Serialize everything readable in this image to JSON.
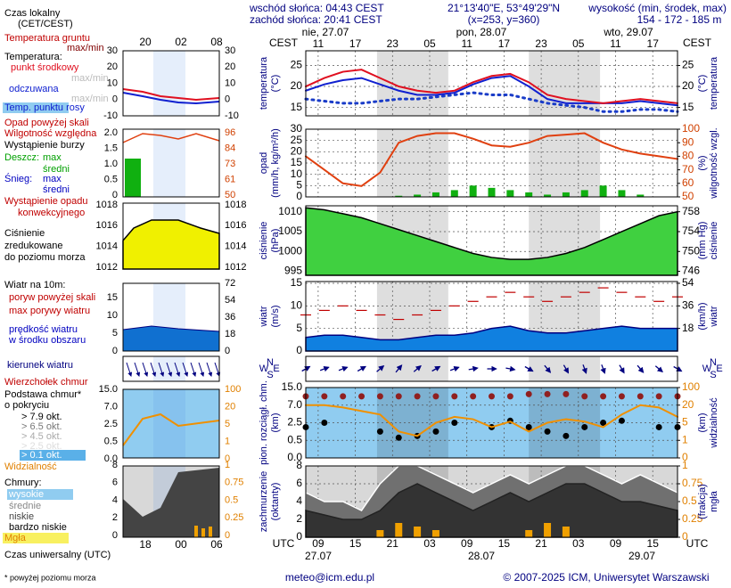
{
  "header": {
    "sunrise": "wschód słońca: 04:43 CEST",
    "sunset": "zachód słońca: 20:41 CEST",
    "coords": "21°13'40\"E, 53°49'29\"N",
    "grid": "(x=253, y=360)",
    "elevation_label": "wysokość (min, środek, max)",
    "elevation": "154 - 172 - 185 m"
  },
  "time_axis": {
    "top_label": "CEST",
    "top_hours": [
      "11",
      "17",
      "23",
      "05",
      "11",
      "17",
      "23",
      "05",
      "11",
      "17"
    ],
    "top_dates": [
      "nie, 27.07",
      "pon, 28.07",
      "wto, 29.07"
    ],
    "bottom_label": "UTC",
    "bottom_hours": [
      "09",
      "15",
      "21",
      "03",
      "09",
      "15",
      "21",
      "03",
      "09",
      "15"
    ],
    "bottom_dates": [
      "27.07",
      "28.07",
      "29.07"
    ]
  },
  "legend": {
    "time_local": "Czas lokalny",
    "time_local_sub": "(CET/CEST)",
    "soil_temp": "Temperatura gruntu",
    "soil_maxmin": "max/min",
    "temperature": "Temperatura:",
    "mid": "punkt środkowy",
    "mid_maxmin": "max/min",
    "perceived": "odczuwana",
    "perceived_maxmin": "max/min",
    "dew": "Temp. punktu rosy",
    "precip_over": "Opad powyżej skali",
    "humidity": "Wilgotność względna",
    "storm": "Wystąpienie burzy",
    "rain": "Deszcz:",
    "rain_max": "max",
    "rain_mean": "średni",
    "snow": "Śnieg:",
    "snow_max": "max",
    "snow_mean": "średni",
    "conv1": "Wystąpienie opadu",
    "conv2": "konwekcyjnego",
    "pressure1": "Ciśnienie",
    "pressure2": "zredukowane",
    "pressure3": "do poziomu morza",
    "wind": "Wiatr na 10m:",
    "gust_over": "poryw powyżej skali",
    "gust": "max porywy wiatru",
    "wind_mean1": "prędkość wiatru",
    "wind_mean2": "w środku obszaru",
    "wind_dir": "kierunek wiatru",
    "cloud_top": "Wierzchołek chmur",
    "cloud_base1": "Podstawa chmur*",
    "cloud_base2": "o pokryciu",
    "okt79": "> 7.9 okt.",
    "okt65": "> 6.5 okt.",
    "okt45": "> 4.5 okt.",
    "okt25": "> 2.5 okt.",
    "okt01": "> 0.1 okt.",
    "visibility": "Widzialność",
    "clouds": "Chmury:",
    "high": "wysokie",
    "mid_c": "średnie",
    "low": "niskie",
    "very_low": "bardzo niskie",
    "fog": "Mgła",
    "utc": "Czas uniwersalny (UTC)"
  },
  "legend_ticks": {
    "top": [
      "20",
      "02",
      "08"
    ],
    "bottom": [
      "18",
      "00",
      "06"
    ],
    "temp": [
      30,
      20,
      10,
      0,
      -10
    ],
    "precip": [
      "2.0",
      "1.5",
      "1.0",
      "0.5",
      0
    ],
    "hum": [
      96,
      84,
      73,
      61,
      50
    ],
    "press": [
      1018,
      1016,
      1014,
      1012
    ],
    "wind": [
      15,
      10,
      5,
      0
    ],
    "wind2": [
      72,
      54,
      36,
      18,
      0
    ],
    "cloud": [
      "15.0",
      "7.0",
      "2.5",
      "0.5",
      "0.0"
    ],
    "vis": [
      100,
      20,
      5,
      1,
      0
    ],
    "cl": [
      8,
      6,
      4,
      2,
      0
    ],
    "fog": [
      1,
      0.75,
      0.5,
      0.25,
      0
    ]
  },
  "footer": {
    "email": "meteo@icm.edu.pl",
    "copyright": "© 2007-2025 ICM, Uniwersytet Warszawski",
    "note": "* powyżej poziomu morza"
  },
  "chart_data": [
    {
      "type": "line",
      "ylabel": [
        "temperatura",
        "(°C)"
      ],
      "y2label": [
        "(°C)",
        "temperatura"
      ],
      "ylim": [
        13,
        28.5
      ],
      "yticks": [
        15,
        20,
        25
      ],
      "y2lim": [
        13,
        28.5
      ],
      "y2ticks": [
        15,
        20,
        25
      ],
      "grid": true,
      "background": "#ffffff",
      "series": [
        {
          "kind": "line",
          "color": "#1a3cc8",
          "style": "dotted",
          "values": [
            17,
            16.5,
            16,
            16,
            16.5,
            17,
            17,
            17.5,
            18,
            18.5,
            18,
            18,
            17,
            16,
            15.5,
            15,
            14,
            14,
            14.5,
            14.5,
            14
          ]
        },
        {
          "kind": "line",
          "color": "#1020d0",
          "values": [
            19,
            20.5,
            21.5,
            22,
            20.5,
            19,
            18,
            18,
            18.5,
            20.5,
            22,
            22.5,
            20,
            17,
            16,
            16,
            16,
            16,
            16.5,
            16,
            15.5
          ]
        },
        {
          "kind": "line",
          "color": "#e01020",
          "values": [
            20,
            22,
            23.5,
            24,
            22,
            20,
            19,
            18.5,
            19,
            21,
            22.5,
            23,
            21,
            18,
            17,
            16.5,
            16,
            16.5,
            17,
            16.5,
            16
          ]
        }
      ]
    },
    {
      "type": "bar",
      "ylabel": [
        "opad",
        "(mm/h, kg/m²/h)"
      ],
      "y2label": [
        "(%)",
        "wilgotność wzgl."
      ],
      "ylim": [
        0,
        30
      ],
      "yticks": [
        0,
        5,
        10,
        15,
        20,
        25,
        30
      ],
      "y2lim": [
        50,
        100
      ],
      "y2ticks": [
        50,
        60,
        70,
        80,
        90,
        100
      ],
      "grid": true,
      "background": "#ffffff",
      "y2color": "#d04000",
      "series": [
        {
          "kind": "bar",
          "color": "#10b010",
          "values": [
            0,
            0,
            0,
            0,
            0,
            0.5,
            1,
            2,
            3,
            5,
            4,
            3,
            2,
            1,
            2,
            3,
            5,
            3,
            1,
            0,
            0
          ]
        },
        {
          "kind": "line",
          "axis": "y2",
          "color": "#e04010",
          "values": [
            80,
            70,
            60,
            58,
            68,
            90,
            95,
            97,
            97,
            93,
            88,
            87,
            90,
            95,
            96,
            97,
            90,
            85,
            82,
            80,
            78
          ]
        }
      ]
    },
    {
      "type": "area",
      "ylabel": [
        "ciśnienie",
        "(hPa)"
      ],
      "y2label": [
        "(mm Hg)",
        "ciśnienie"
      ],
      "ylim": [
        994,
        1011.5
      ],
      "yticks": [
        995,
        1000,
        1005,
        1010
      ],
      "y2lim": [
        745.2,
        759.2
      ],
      "y2ticks": [
        746,
        750,
        754,
        758
      ],
      "grid": true,
      "background": "#ffffff",
      "series": [
        {
          "kind": "area",
          "color": "#000000",
          "fill": "#40d040",
          "values": [
            1011,
            1010.5,
            1009.5,
            1008.5,
            1007,
            1005.5,
            1004,
            1002.5,
            1001,
            999.5,
            998.5,
            998,
            998,
            998.5,
            999.5,
            1001,
            1003,
            1005,
            1007,
            1009,
            1010
          ]
        }
      ]
    },
    {
      "type": "line",
      "ylabel": [
        "wiatr",
        "(m/s)"
      ],
      "y2label": [
        "(km/h)",
        "wiatr"
      ],
      "ylim": [
        0,
        15.4
      ],
      "yticks": [
        0,
        5,
        10,
        15
      ],
      "y2lim": [
        0,
        55.4
      ],
      "y2ticks": [
        18,
        36,
        54
      ],
      "grid": true,
      "background": "#ffffff",
      "series": [
        {
          "kind": "area",
          "color": "#000080",
          "fill": "#1080e0",
          "values": [
            3,
            3.5,
            3.5,
            3,
            2.5,
            2.5,
            3,
            3.5,
            3.5,
            4,
            5,
            5.5,
            4.5,
            4,
            4,
            4.5,
            5,
            5.5,
            5,
            5,
            5
          ]
        },
        {
          "kind": "dash",
          "color": "#c00000",
          "values": [
            8,
            9,
            10,
            9,
            8,
            7,
            8,
            9,
            10,
            11,
            12,
            13,
            12,
            11,
            12,
            13,
            14,
            13,
            12,
            11,
            12
          ]
        }
      ]
    },
    {
      "type": "quiver",
      "dir_labels": [
        "N",
        "W",
        "E",
        "S"
      ],
      "background": "#ffffff",
      "series": [
        {
          "kind": "arrow",
          "color": "#000080",
          "values": [
            240,
            250,
            250,
            240,
            230,
            220,
            230,
            240,
            250,
            260,
            270,
            280,
            300,
            320,
            330,
            340,
            340,
            330,
            320,
            310,
            300
          ]
        }
      ]
    },
    {
      "type": "scatter",
      "ylabel": [
        "pion. rozciągł. chm.",
        "(km)"
      ],
      "y2label": [
        "(km)",
        "widzialność"
      ],
      "yscale": "piecewise",
      "ylim": [
        0,
        15
      ],
      "yticks": [
        {
          "value": 0,
          "label": "0.0"
        },
        {
          "value": 0.5,
          "label": "0.5"
        },
        {
          "value": 2.5,
          "label": "2.5"
        },
        {
          "value": 7,
          "label": "7.0"
        },
        {
          "value": 15,
          "label": "15.0"
        }
      ],
      "y2lim": [
        0,
        100
      ],
      "y2ticks": [
        0,
        1,
        5,
        20,
        100
      ],
      "grid": true,
      "background": "#90ccf0",
      "y2color": "#e08000",
      "series": [
        {
          "kind": "dots",
          "color": "#902020",
          "values": [
            11,
            11,
            11,
            11,
            11,
            11,
            11,
            11,
            11,
            11,
            11,
            11,
            12,
            12,
            12,
            11,
            11,
            11,
            11,
            11,
            11
          ]
        },
        {
          "kind": "dots",
          "color": "#000000",
          "values": [
            2,
            2.5,
            null,
            null,
            1.5,
            0.8,
            1,
            1.5,
            2.5,
            null,
            2,
            3,
            2,
            1.5,
            1,
            2,
            2.5,
            3,
            null,
            2,
            2
          ]
        },
        {
          "kind": "line",
          "axis": "y2",
          "color": "#f09000",
          "values": [
            20,
            20,
            18,
            15,
            12,
            3,
            2,
            5,
            10,
            8,
            4,
            6,
            3,
            5,
            8,
            6,
            4,
            12,
            20,
            18,
            10
          ]
        }
      ]
    },
    {
      "type": "area",
      "ylabel": [
        "zachmurzenie",
        "(oktanty)"
      ],
      "y2label": [
        "(frakcja)",
        "mgła"
      ],
      "ylim": [
        0,
        8
      ],
      "yticks": [
        0,
        2,
        4,
        6,
        8
      ],
      "y2lim": [
        0,
        1
      ],
      "y2ticks": [
        0,
        0.25,
        0.5,
        0.75,
        1
      ],
      "grid": true,
      "background": "#d8d8d8",
      "y2color": "#e08000",
      "series": [
        {
          "kind": "area",
          "color": "#ffffff",
          "fill": "#707070",
          "values": [
            5,
            4,
            4,
            3,
            6,
            8,
            8,
            7,
            6,
            5,
            6,
            7,
            6,
            7,
            8,
            8,
            7,
            6,
            7,
            6,
            5
          ]
        },
        {
          "kind": "area",
          "color": "#222222",
          "fill": "#333333",
          "values": [
            3,
            2.5,
            2,
            2,
            3,
            5,
            6,
            5,
            4,
            3,
            4,
            5,
            4,
            5,
            6,
            6,
            5,
            4,
            4,
            3.5,
            3
          ]
        },
        {
          "kind": "bar",
          "axis": "y2",
          "color": "#f0a000",
          "values": [
            0,
            0,
            0,
            0,
            0.1,
            0.2,
            0.15,
            0.1,
            0,
            0,
            0,
            0,
            0.1,
            0.2,
            0.15,
            0,
            0,
            0,
            0,
            0,
            0
          ]
        }
      ]
    }
  ]
}
